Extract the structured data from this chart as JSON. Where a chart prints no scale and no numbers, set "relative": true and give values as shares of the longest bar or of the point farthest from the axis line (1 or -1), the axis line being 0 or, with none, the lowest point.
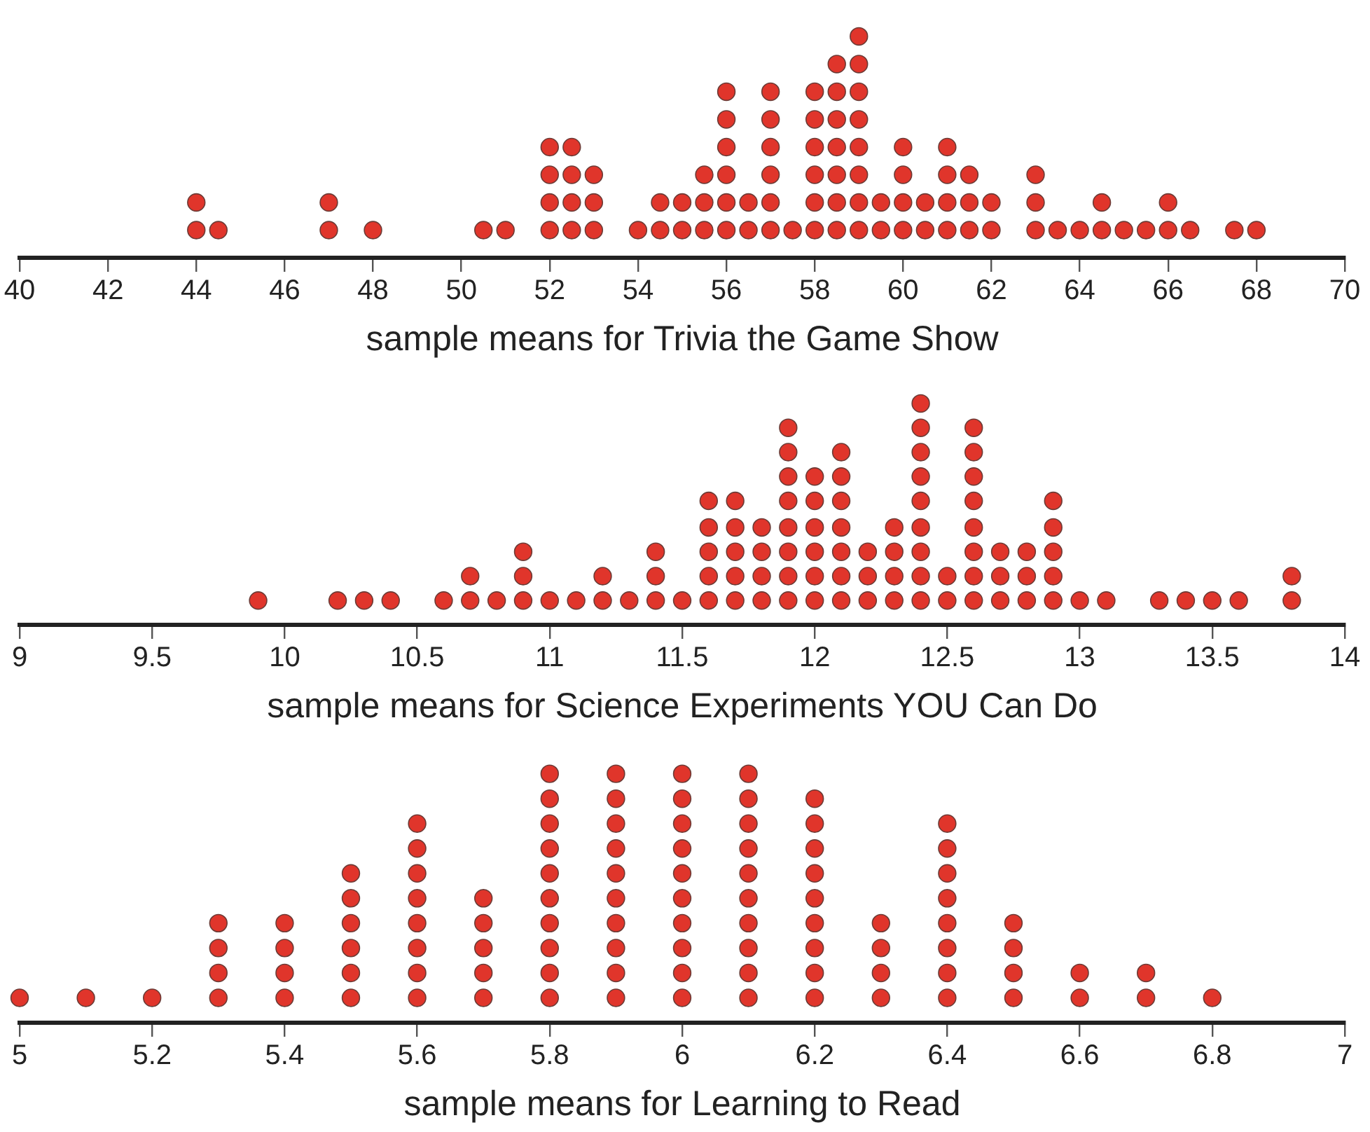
{
  "chart_data": [
    {
      "type": "scatter",
      "relative": true,
      "xlabel": "sample means for Trivia the Game Show",
      "color": "#e0352b",
      "marker": "circle",
      "tick_labels": "x",
      "grid": false,
      "xlim": [
        40,
        70
      ],
      "xticks": [
        40,
        42,
        44,
        46,
        48,
        50,
        52,
        54,
        56,
        58,
        60,
        62,
        64,
        66,
        68,
        70
      ],
      "x": [
        44,
        44,
        44.5,
        47,
        47,
        48,
        50.5,
        51,
        52,
        52,
        52,
        52,
        52.5,
        52.5,
        52.5,
        52.5,
        53,
        53,
        53,
        54,
        54.5,
        54.5,
        55,
        55,
        55.5,
        55.5,
        55.5,
        56,
        56,
        56,
        56,
        56,
        56,
        56.5,
        56.5,
        57,
        57,
        57,
        57,
        57,
        57,
        57.5,
        58,
        58,
        58,
        58,
        58,
        58,
        58.5,
        58.5,
        58.5,
        58.5,
        58.5,
        58.5,
        58.5,
        59,
        59,
        59,
        59,
        59,
        59,
        59,
        59,
        59.5,
        59.5,
        60,
        60,
        60,
        60,
        60.5,
        60.5,
        61,
        61,
        61,
        61,
        61.5,
        61.5,
        61.5,
        62,
        62,
        63,
        63,
        63,
        63.5,
        64,
        64.5,
        64.5,
        65,
        65.5,
        66,
        66,
        66.5,
        67.5,
        68
      ],
      "values": [
        0.125,
        0.25,
        0.125,
        0.125,
        0.25,
        0.125,
        0.125,
        0.125,
        0.125,
        0.25,
        0.375,
        0.5,
        0.125,
        0.25,
        0.375,
        0.5,
        0.125,
        0.25,
        0.375,
        0.125,
        0.125,
        0.25,
        0.125,
        0.25,
        0.125,
        0.25,
        0.375,
        0.125,
        0.25,
        0.375,
        0.5,
        0.625,
        0.75,
        0.125,
        0.25,
        0.125,
        0.25,
        0.375,
        0.5,
        0.625,
        0.75,
        0.125,
        0.125,
        0.25,
        0.375,
        0.5,
        0.625,
        0.75,
        0.125,
        0.25,
        0.375,
        0.5,
        0.625,
        0.75,
        0.875,
        0.125,
        0.25,
        0.375,
        0.5,
        0.625,
        0.75,
        0.875,
        1,
        0.125,
        0.25,
        0.125,
        0.25,
        0.375,
        0.5,
        0.125,
        0.25,
        0.125,
        0.25,
        0.375,
        0.5,
        0.125,
        0.25,
        0.375,
        0.125,
        0.25,
        0.125,
        0.25,
        0.375,
        0.125,
        0.125,
        0.125,
        0.25,
        0.125,
        0.125,
        0.125,
        0.25,
        0.125,
        0.125,
        0.125
      ]
    },
    {
      "type": "scatter",
      "relative": true,
      "xlabel": "sample means for Science Experiments YOU Can Do",
      "color": "#e0352b",
      "marker": "circle",
      "tick_labels": "x",
      "grid": false,
      "xlim": [
        9,
        14
      ],
      "xticks": [
        9,
        9.5,
        10,
        10.5,
        11,
        11.5,
        12,
        12.5,
        13,
        13.5,
        14
      ],
      "x": [
        9.9,
        10.2,
        10.3,
        10.4,
        10.6,
        10.7,
        10.7,
        10.8,
        10.9,
        10.9,
        10.9,
        11,
        11.1,
        11.2,
        11.2,
        11.3,
        11.4,
        11.4,
        11.4,
        11.5,
        11.6,
        11.6,
        11.6,
        11.6,
        11.6,
        11.7,
        11.7,
        11.7,
        11.7,
        11.7,
        11.8,
        11.8,
        11.8,
        11.8,
        11.9,
        11.9,
        11.9,
        11.9,
        11.9,
        11.9,
        11.9,
        11.9,
        12,
        12,
        12,
        12,
        12,
        12,
        12.1,
        12.1,
        12.1,
        12.1,
        12.1,
        12.1,
        12.1,
        12.2,
        12.2,
        12.2,
        12.3,
        12.3,
        12.3,
        12.3,
        12.4,
        12.4,
        12.4,
        12.4,
        12.4,
        12.4,
        12.4,
        12.4,
        12.4,
        12.5,
        12.5,
        12.6,
        12.6,
        12.6,
        12.6,
        12.6,
        12.6,
        12.6,
        12.6,
        12.7,
        12.7,
        12.7,
        12.8,
        12.8,
        12.8,
        12.9,
        12.9,
        12.9,
        12.9,
        12.9,
        13,
        13.1,
        13.3,
        13.4,
        13.5,
        13.6,
        13.8,
        13.8
      ],
      "values": [
        0.11,
        0.11,
        0.11,
        0.11,
        0.11,
        0.11,
        0.22,
        0.11,
        0.11,
        0.22,
        0.33,
        0.11,
        0.11,
        0.11,
        0.22,
        0.11,
        0.11,
        0.22,
        0.33,
        0.11,
        0.11,
        0.22,
        0.33,
        0.44,
        0.56,
        0.11,
        0.22,
        0.33,
        0.44,
        0.56,
        0.11,
        0.22,
        0.33,
        0.44,
        0.11,
        0.22,
        0.33,
        0.44,
        0.56,
        0.67,
        0.78,
        0.89,
        0.11,
        0.22,
        0.33,
        0.44,
        0.56,
        0.67,
        0.11,
        0.22,
        0.33,
        0.44,
        0.56,
        0.67,
        0.78,
        0.11,
        0.22,
        0.33,
        0.11,
        0.22,
        0.33,
        0.44,
        0.11,
        0.22,
        0.33,
        0.44,
        0.56,
        0.67,
        0.78,
        0.89,
        1,
        0.11,
        0.22,
        0.11,
        0.22,
        0.33,
        0.44,
        0.56,
        0.67,
        0.78,
        0.89,
        0.11,
        0.22,
        0.33,
        0.11,
        0.22,
        0.33,
        0.11,
        0.22,
        0.33,
        0.44,
        0.56,
        0.11,
        0.11,
        0.11,
        0.11,
        0.11,
        0.11,
        0.11,
        0.22
      ]
    },
    {
      "type": "scatter",
      "relative": true,
      "xlabel": "sample means for Learning to Read",
      "color": "#e0352b",
      "marker": "circle",
      "tick_labels": "x",
      "grid": false,
      "xlim": [
        5,
        7
      ],
      "xticks": [
        5,
        5.2,
        5.4,
        5.6,
        5.8,
        6,
        6.2,
        6.4,
        6.6,
        6.8,
        7
      ],
      "x": [
        5,
        5.1,
        5.2,
        5.3,
        5.3,
        5.3,
        5.3,
        5.4,
        5.4,
        5.4,
        5.4,
        5.5,
        5.5,
        5.5,
        5.5,
        5.5,
        5.5,
        5.6,
        5.6,
        5.6,
        5.6,
        5.6,
        5.6,
        5.6,
        5.6,
        5.7,
        5.7,
        5.7,
        5.7,
        5.7,
        5.8,
        5.8,
        5.8,
        5.8,
        5.8,
        5.8,
        5.8,
        5.8,
        5.8,
        5.8,
        5.9,
        5.9,
        5.9,
        5.9,
        5.9,
        5.9,
        5.9,
        5.9,
        5.9,
        5.9,
        6,
        6,
        6,
        6,
        6,
        6,
        6,
        6,
        6,
        6,
        6.1,
        6.1,
        6.1,
        6.1,
        6.1,
        6.1,
        6.1,
        6.1,
        6.1,
        6.1,
        6.2,
        6.2,
        6.2,
        6.2,
        6.2,
        6.2,
        6.2,
        6.2,
        6.2,
        6.3,
        6.3,
        6.3,
        6.3,
        6.4,
        6.4,
        6.4,
        6.4,
        6.4,
        6.4,
        6.4,
        6.4,
        6.5,
        6.5,
        6.5,
        6.5,
        6.6,
        6.6,
        6.7,
        6.7,
        6.8
      ],
      "values": [
        0.1,
        0.1,
        0.1,
        0.1,
        0.2,
        0.3,
        0.4,
        0.1,
        0.2,
        0.3,
        0.4,
        0.1,
        0.2,
        0.3,
        0.4,
        0.5,
        0.6,
        0.1,
        0.2,
        0.3,
        0.4,
        0.5,
        0.6,
        0.7,
        0.8,
        0.1,
        0.2,
        0.3,
        0.4,
        0.5,
        0.1,
        0.2,
        0.3,
        0.4,
        0.5,
        0.6,
        0.7,
        0.8,
        0.9,
        1,
        0.1,
        0.2,
        0.3,
        0.4,
        0.5,
        0.6,
        0.7,
        0.8,
        0.9,
        1,
        0.1,
        0.2,
        0.3,
        0.4,
        0.5,
        0.6,
        0.7,
        0.8,
        0.9,
        1,
        0.1,
        0.2,
        0.3,
        0.4,
        0.5,
        0.6,
        0.7,
        0.8,
        0.9,
        1,
        0.1,
        0.2,
        0.3,
        0.4,
        0.5,
        0.6,
        0.7,
        0.8,
        0.9,
        0.1,
        0.2,
        0.3,
        0.4,
        0.1,
        0.2,
        0.3,
        0.4,
        0.5,
        0.6,
        0.7,
        0.8,
        0.1,
        0.2,
        0.3,
        0.4,
        0.1,
        0.2,
        0.1,
        0.2,
        0.1
      ]
    }
  ]
}
